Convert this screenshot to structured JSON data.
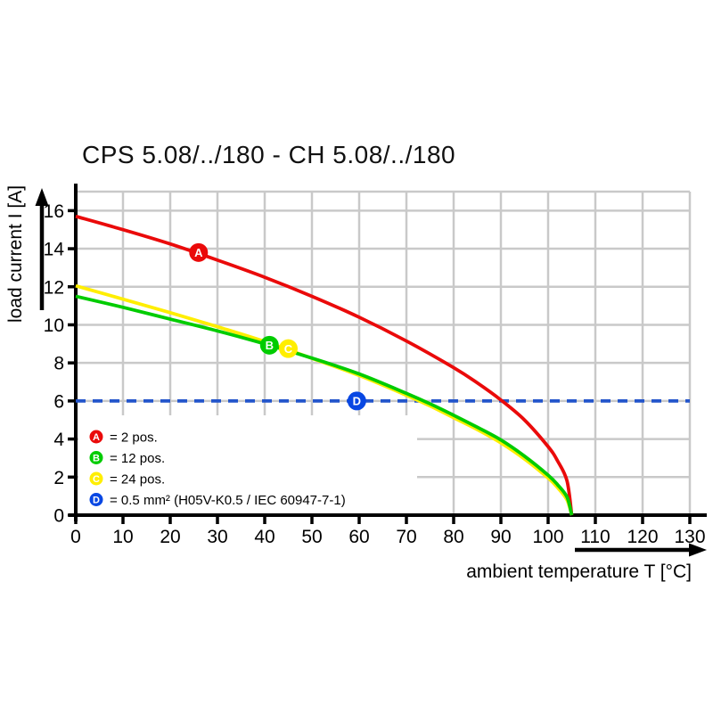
{
  "title": "CPS 5.08/../180 - CH 5.08/../180",
  "colors": {
    "background": "#ffffff",
    "grid": "#c9c9c9",
    "axis": "#000000",
    "series_red": "#ea0a0a",
    "series_green": "#00cc00",
    "series_yellow": "#ffee00",
    "series_blue_dash": "#2355cb",
    "series_blue_marker": "#0847e3"
  },
  "chart_data": {
    "type": "line",
    "title": "CPS 5.08/../180 - CH 5.08/../180",
    "xlabel": "ambient temperature T [°C]",
    "ylabel": "load current I [A]",
    "xlim": [
      0,
      130
    ],
    "ylim": [
      0,
      17
    ],
    "xticks": [
      0,
      10,
      20,
      30,
      40,
      50,
      60,
      70,
      80,
      90,
      100,
      110,
      120,
      130
    ],
    "yticks": [
      0,
      2,
      4,
      6,
      8,
      10,
      12,
      14,
      16
    ],
    "grid": true,
    "legend_position": "inside-bottom-left",
    "series": [
      {
        "id": "A",
        "legend_label": "= 2 pos.",
        "color": "#ea0a0a",
        "line_style": "solid",
        "marker": {
          "letter": "A",
          "x": 26,
          "y": 13.8
        },
        "points": [
          [
            0,
            15.7
          ],
          [
            10,
            15.0
          ],
          [
            20,
            14.25
          ],
          [
            30,
            13.4
          ],
          [
            40,
            12.5
          ],
          [
            50,
            11.5
          ],
          [
            60,
            10.4
          ],
          [
            70,
            9.15
          ],
          [
            80,
            7.75
          ],
          [
            85,
            6.95
          ],
          [
            90,
            6.05
          ],
          [
            95,
            5.0
          ],
          [
            100,
            3.6
          ],
          [
            102,
            2.85
          ],
          [
            104,
            1.8
          ],
          [
            105,
            0
          ]
        ]
      },
      {
        "id": "B",
        "legend_label": "= 12 pos.",
        "color": "#00cc00",
        "line_style": "solid",
        "marker": {
          "letter": "B",
          "x": 41,
          "y": 8.93
        },
        "points": [
          [
            0,
            11.5
          ],
          [
            10,
            10.92
          ],
          [
            20,
            10.3
          ],
          [
            30,
            9.68
          ],
          [
            40,
            9.0
          ],
          [
            50,
            8.25
          ],
          [
            60,
            7.42
          ],
          [
            70,
            6.4
          ],
          [
            75,
            5.85
          ],
          [
            80,
            5.25
          ],
          [
            85,
            4.62
          ],
          [
            90,
            3.95
          ],
          [
            95,
            3.1
          ],
          [
            100,
            2.1
          ],
          [
            102,
            1.6
          ],
          [
            104,
            0.95
          ],
          [
            105,
            0
          ]
        ]
      },
      {
        "id": "C",
        "legend_label": "= 24 pos.",
        "color": "#ffee00",
        "line_style": "solid",
        "marker": {
          "letter": "C",
          "x": 45,
          "y": 8.75
        },
        "points": [
          [
            0,
            12.05
          ],
          [
            10,
            11.35
          ],
          [
            20,
            10.64
          ],
          [
            30,
            9.9
          ],
          [
            40,
            9.12
          ],
          [
            50,
            8.24
          ],
          [
            60,
            7.34
          ],
          [
            70,
            6.3
          ],
          [
            75,
            5.74
          ],
          [
            80,
            5.12
          ],
          [
            85,
            4.5
          ],
          [
            90,
            3.8
          ],
          [
            95,
            2.95
          ],
          [
            100,
            1.95
          ],
          [
            102,
            1.45
          ],
          [
            104,
            0.8
          ],
          [
            105,
            0
          ]
        ]
      },
      {
        "id": "D",
        "legend_label": "= 0.5 mm² (H05V-K0.5 / IEC 60947-7-1)",
        "color": "#2355cb",
        "marker_color": "#0847e3",
        "line_style": "dashed",
        "marker": {
          "letter": "D",
          "x": 59.5,
          "y": 6
        },
        "points": [
          [
            0,
            6
          ],
          [
            130,
            6
          ]
        ]
      }
    ]
  }
}
